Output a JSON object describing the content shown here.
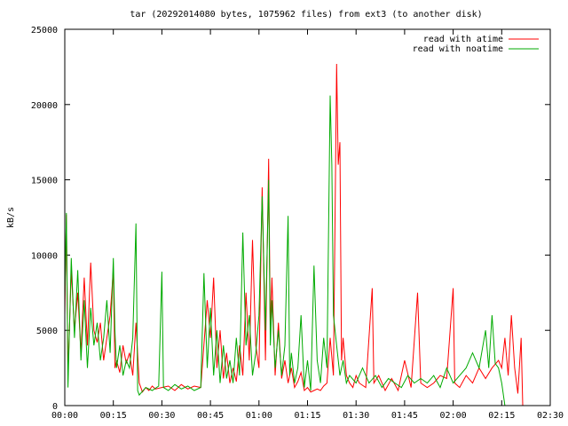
{
  "chart_data": {
    "type": "line",
    "title": "tar (20292014080 bytes, 1075962 files) from ext3 (to another disk)",
    "ylabel": "kB/s",
    "xlabel": "",
    "x_unit": "hh:mm elapsed",
    "xlim": [
      "00:00",
      "02:30"
    ],
    "ylim": [
      0,
      25000
    ],
    "x_ticks": [
      "00:00",
      "00:15",
      "00:30",
      "00:45",
      "01:00",
      "01:15",
      "01:30",
      "01:45",
      "02:00",
      "02:15",
      "02:30"
    ],
    "y_ticks": [
      "0",
      "5000",
      "10000",
      "15000",
      "20000",
      "25000"
    ],
    "grid": false,
    "legend_position": "top-right",
    "series": [
      {
        "name": "read with atime",
        "color": "#ff0000",
        "points": [
          [
            "00:00",
            6000
          ],
          [
            "00:00:30",
            12700
          ],
          [
            "00:01",
            2000
          ],
          [
            "00:02",
            9000
          ],
          [
            "00:03",
            5000
          ],
          [
            "00:04",
            7500
          ],
          [
            "00:05",
            3500
          ],
          [
            "00:06",
            8500
          ],
          [
            "00:07",
            4000
          ],
          [
            "00:08",
            9500
          ],
          [
            "00:09",
            5000
          ],
          [
            "00:10",
            4200
          ],
          [
            "00:11",
            5500
          ],
          [
            "00:12",
            3000
          ],
          [
            "00:13",
            4500
          ],
          [
            "00:14",
            6000
          ],
          [
            "00:15",
            9000
          ],
          [
            "00:15:30",
            2500
          ],
          [
            "00:16",
            3000
          ],
          [
            "00:17",
            2200
          ],
          [
            "00:18",
            4000
          ],
          [
            "00:19",
            2800
          ],
          [
            "00:20",
            3500
          ],
          [
            "00:21",
            2000
          ],
          [
            "00:22",
            5500
          ],
          [
            "00:23",
            1500
          ],
          [
            "00:24",
            900
          ],
          [
            "00:25",
            1200
          ],
          [
            "00:26",
            1000
          ],
          [
            "00:27",
            1300
          ],
          [
            "00:28",
            1100
          ],
          [
            "00:30",
            1200
          ],
          [
            "00:32",
            1300
          ],
          [
            "00:34",
            1000
          ],
          [
            "00:36",
            1400
          ],
          [
            "00:38",
            1100
          ],
          [
            "00:40",
            1300
          ],
          [
            "00:42",
            1200
          ],
          [
            "00:44",
            7000
          ],
          [
            "00:45",
            4500
          ],
          [
            "00:46",
            8500
          ],
          [
            "00:47",
            2500
          ],
          [
            "00:48",
            5000
          ],
          [
            "00:49",
            1800
          ],
          [
            "00:50",
            3500
          ],
          [
            "00:51",
            1500
          ],
          [
            "00:52",
            2500
          ],
          [
            "00:53",
            1600
          ],
          [
            "00:54",
            4000
          ],
          [
            "00:55",
            2000
          ],
          [
            "00:56",
            7500
          ],
          [
            "00:57",
            3000
          ],
          [
            "00:58",
            11000
          ],
          [
            "00:59",
            4000
          ],
          [
            "01:00",
            2500
          ],
          [
            "01:01",
            14500
          ],
          [
            "01:02",
            3000
          ],
          [
            "01:03",
            16400
          ],
          [
            "01:03:30",
            5000
          ],
          [
            "01:04",
            8500
          ],
          [
            "01:05",
            2000
          ],
          [
            "01:06",
            5500
          ],
          [
            "01:07",
            1800
          ],
          [
            "01:08",
            3000
          ],
          [
            "01:09",
            1500
          ],
          [
            "01:10",
            2500
          ],
          [
            "01:11",
            1200
          ],
          [
            "01:12",
            1600
          ],
          [
            "01:13",
            2200
          ],
          [
            "01:14",
            1000
          ],
          [
            "01:15",
            1200
          ],
          [
            "01:16",
            900
          ],
          [
            "01:17",
            1000
          ],
          [
            "01:18",
            1100
          ],
          [
            "01:19",
            1000
          ],
          [
            "01:20",
            1300
          ],
          [
            "01:21",
            1500
          ],
          [
            "01:22",
            4500
          ],
          [
            "01:23",
            2000
          ],
          [
            "01:24",
            22700
          ],
          [
            "01:24:30",
            16000
          ],
          [
            "01:25",
            17500
          ],
          [
            "01:25:30",
            3000
          ],
          [
            "01:26",
            4500
          ],
          [
            "01:27",
            2000
          ],
          [
            "01:28",
            1500
          ],
          [
            "01:29",
            1200
          ],
          [
            "01:30",
            2000
          ],
          [
            "01:31",
            1500
          ],
          [
            "01:33",
            1200
          ],
          [
            "01:35",
            7800
          ],
          [
            "01:35:30",
            1500
          ],
          [
            "01:37",
            2000
          ],
          [
            "01:39",
            1000
          ],
          [
            "01:41",
            1800
          ],
          [
            "01:43",
            1000
          ],
          [
            "01:45",
            3000
          ],
          [
            "01:47",
            1200
          ],
          [
            "01:49",
            7500
          ],
          [
            "01:50",
            1500
          ],
          [
            "01:52",
            1200
          ],
          [
            "01:54",
            1500
          ],
          [
            "01:56",
            2000
          ],
          [
            "01:58",
            1800
          ],
          [
            "02:00",
            7800
          ],
          [
            "02:00:30",
            1500
          ],
          [
            "02:02",
            1200
          ],
          [
            "02:04",
            2000
          ],
          [
            "02:06",
            1500
          ],
          [
            "02:08",
            2500
          ],
          [
            "02:10",
            1800
          ],
          [
            "02:12",
            2500
          ],
          [
            "02:14",
            3000
          ],
          [
            "02:15",
            2500
          ],
          [
            "02:16",
            4500
          ],
          [
            "02:17",
            2000
          ],
          [
            "02:18",
            6000
          ],
          [
            "02:19",
            2500
          ],
          [
            "02:20",
            800
          ],
          [
            "02:21",
            4500
          ],
          [
            "02:21:30",
            0
          ]
        ]
      },
      {
        "name": "read with noatime",
        "color": "#00aa00",
        "points": [
          [
            "00:00",
            7000
          ],
          [
            "00:00:30",
            12800
          ],
          [
            "00:01",
            1200
          ],
          [
            "00:02",
            9800
          ],
          [
            "00:03",
            4500
          ],
          [
            "00:04",
            9000
          ],
          [
            "00:05",
            3000
          ],
          [
            "00:06",
            7000
          ],
          [
            "00:07",
            2500
          ],
          [
            "00:08",
            6500
          ],
          [
            "00:09",
            4000
          ],
          [
            "00:10",
            5500
          ],
          [
            "00:11",
            3000
          ],
          [
            "00:12",
            4500
          ],
          [
            "00:13",
            7000
          ],
          [
            "00:14",
            3500
          ],
          [
            "00:15",
            9800
          ],
          [
            "00:15:30",
            5000
          ],
          [
            "00:16",
            2500
          ],
          [
            "00:17",
            4000
          ],
          [
            "00:18",
            2000
          ],
          [
            "00:19",
            3000
          ],
          [
            "00:20",
            2500
          ],
          [
            "00:21",
            4500
          ],
          [
            "00:22",
            12100
          ],
          [
            "00:22:30",
            1000
          ],
          [
            "00:23",
            700
          ],
          [
            "00:25",
            1200
          ],
          [
            "00:27",
            1000
          ],
          [
            "00:29",
            1300
          ],
          [
            "00:30",
            8900
          ],
          [
            "00:30:30",
            1200
          ],
          [
            "00:32",
            1000
          ],
          [
            "00:34",
            1400
          ],
          [
            "00:36",
            1100
          ],
          [
            "00:38",
            1300
          ],
          [
            "00:40",
            1000
          ],
          [
            "00:42",
            1200
          ],
          [
            "00:43",
            8800
          ],
          [
            "00:44",
            2500
          ],
          [
            "00:45",
            6500
          ],
          [
            "00:46",
            2000
          ],
          [
            "00:47",
            5000
          ],
          [
            "00:48",
            1500
          ],
          [
            "00:49",
            4000
          ],
          [
            "00:50",
            1800
          ],
          [
            "00:51",
            3000
          ],
          [
            "00:52",
            1500
          ],
          [
            "00:53",
            4500
          ],
          [
            "00:54",
            2000
          ],
          [
            "00:55",
            11500
          ],
          [
            "00:56",
            4000
          ],
          [
            "00:57",
            6000
          ],
          [
            "00:58",
            2000
          ],
          [
            "00:59",
            3500
          ],
          [
            "01:00",
            6000
          ],
          [
            "01:01",
            13900
          ],
          [
            "01:02",
            5000
          ],
          [
            "01:03",
            15000
          ],
          [
            "01:03:30",
            4000
          ],
          [
            "01:04",
            7000
          ],
          [
            "01:05",
            2500
          ],
          [
            "01:06",
            5000
          ],
          [
            "01:07",
            2000
          ],
          [
            "01:08",
            4000
          ],
          [
            "01:09",
            12600
          ],
          [
            "01:09:30",
            2000
          ],
          [
            "01:10",
            3500
          ],
          [
            "01:11",
            1500
          ],
          [
            "01:12",
            2500
          ],
          [
            "01:13",
            6000
          ],
          [
            "01:14",
            1200
          ],
          [
            "01:15",
            3000
          ],
          [
            "01:16",
            1000
          ],
          [
            "01:17",
            9300
          ],
          [
            "01:18",
            3000
          ],
          [
            "01:19",
            1500
          ],
          [
            "01:20",
            4500
          ],
          [
            "01:21",
            2500
          ],
          [
            "01:22",
            20600
          ],
          [
            "01:22:30",
            16000
          ],
          [
            "01:23",
            6000
          ],
          [
            "01:24",
            4000
          ],
          [
            "01:25",
            2000
          ],
          [
            "01:26",
            3000
          ],
          [
            "01:27",
            1500
          ],
          [
            "01:28",
            2000
          ],
          [
            "01:30",
            1500
          ],
          [
            "01:32",
            2500
          ],
          [
            "01:34",
            1500
          ],
          [
            "01:36",
            2000
          ],
          [
            "01:38",
            1200
          ],
          [
            "01:40",
            1800
          ],
          [
            "01:42",
            1500
          ],
          [
            "01:44",
            1200
          ],
          [
            "01:46",
            2000
          ],
          [
            "01:48",
            1500
          ],
          [
            "01:50",
            1800
          ],
          [
            "01:52",
            1500
          ],
          [
            "01:54",
            2000
          ],
          [
            "01:56",
            1200
          ],
          [
            "01:58",
            2500
          ],
          [
            "02:00",
            1500
          ],
          [
            "02:02",
            2000
          ],
          [
            "02:04",
            2500
          ],
          [
            "02:06",
            3500
          ],
          [
            "02:08",
            2500
          ],
          [
            "02:10",
            5000
          ],
          [
            "02:11",
            2500
          ],
          [
            "02:12",
            6000
          ],
          [
            "02:13",
            2800
          ],
          [
            "02:14",
            2500
          ],
          [
            "02:15",
            1500
          ],
          [
            "02:16",
            0
          ]
        ]
      }
    ]
  }
}
